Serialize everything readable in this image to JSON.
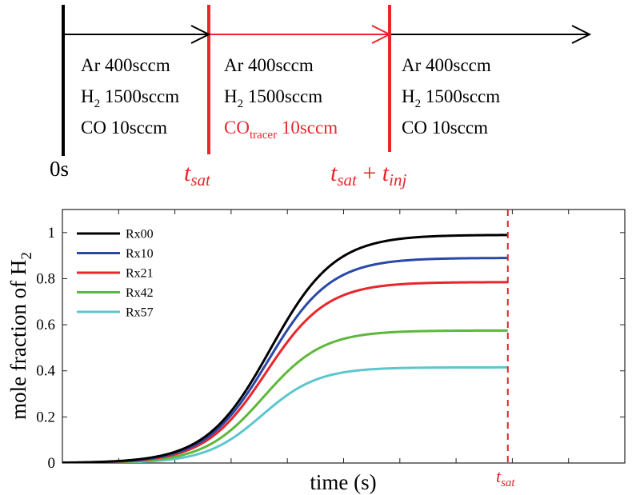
{
  "timeline": {
    "phases": [
      {
        "ar": "Ar 400sccm",
        "h2_prefix": "H",
        "h2_sub": "2",
        "h2_rest": " 1500sccm",
        "co_prefix": "CO",
        "co_sub": "",
        "co_rest": " 10sccm",
        "color": "#000000"
      },
      {
        "ar": "Ar 400sccm",
        "h2_prefix": "H",
        "h2_sub": "2",
        "h2_rest": " 1500sccm",
        "co_prefix": "CO",
        "co_sub": "tracer",
        "co_rest": " 10sccm",
        "color": "#e8262c"
      },
      {
        "ar": "Ar 400sccm",
        "h2_prefix": "H",
        "h2_sub": "2",
        "h2_rest": " 1500sccm",
        "co_prefix": "CO",
        "co_sub": "",
        "co_rest": " 10sccm",
        "color": "#000000"
      }
    ],
    "marker_start": "0s",
    "marker_sat": {
      "base": "t",
      "sub": "sat"
    },
    "marker_inj": {
      "base1": "t",
      "sub1": "sat",
      "op": " + ",
      "base2": "t",
      "sub2": "inj"
    },
    "accent_color": "#e8262c"
  },
  "chart_data": {
    "type": "line",
    "title": "",
    "xlabel": "time (s)",
    "ylabel_prefix": "mole fraction of H",
    "ylabel_sub": "2",
    "xlim": [
      0,
      10
    ],
    "ylim": [
      0,
      1.1
    ],
    "y_ticks": [
      "0",
      "0.2",
      "0.4",
      "0.6",
      "0.8",
      "1"
    ],
    "y_tick_values": [
      0,
      0.2,
      0.4,
      0.6,
      0.8,
      1.0
    ],
    "x_tick_values": [
      1,
      2,
      3,
      4,
      5,
      6,
      7,
      8,
      9
    ],
    "x_tick_labels_shown": false,
    "grid": false,
    "legend_placement": "top-left",
    "tsat_x": 7.92,
    "tsat_label": {
      "base": "t",
      "sub": "sat"
    },
    "tsat_color": "#d9262c",
    "series": [
      {
        "name": "Rx00",
        "color": "#000000",
        "final": 0.99,
        "x50": 3.7,
        "k": 1.75
      },
      {
        "name": "Rx10",
        "color": "#2b48a8",
        "final": 0.89,
        "x50": 3.66,
        "k": 1.8
      },
      {
        "name": "Rx21",
        "color": "#e8262c",
        "final": 0.785,
        "x50": 3.62,
        "k": 1.85
      },
      {
        "name": "Rx42",
        "color": "#5db83a",
        "final": 0.575,
        "x50": 3.58,
        "k": 1.9
      },
      {
        "name": "Rx57",
        "color": "#5dc6cc",
        "final": 0.415,
        "x50": 3.55,
        "k": 2.0
      }
    ]
  }
}
